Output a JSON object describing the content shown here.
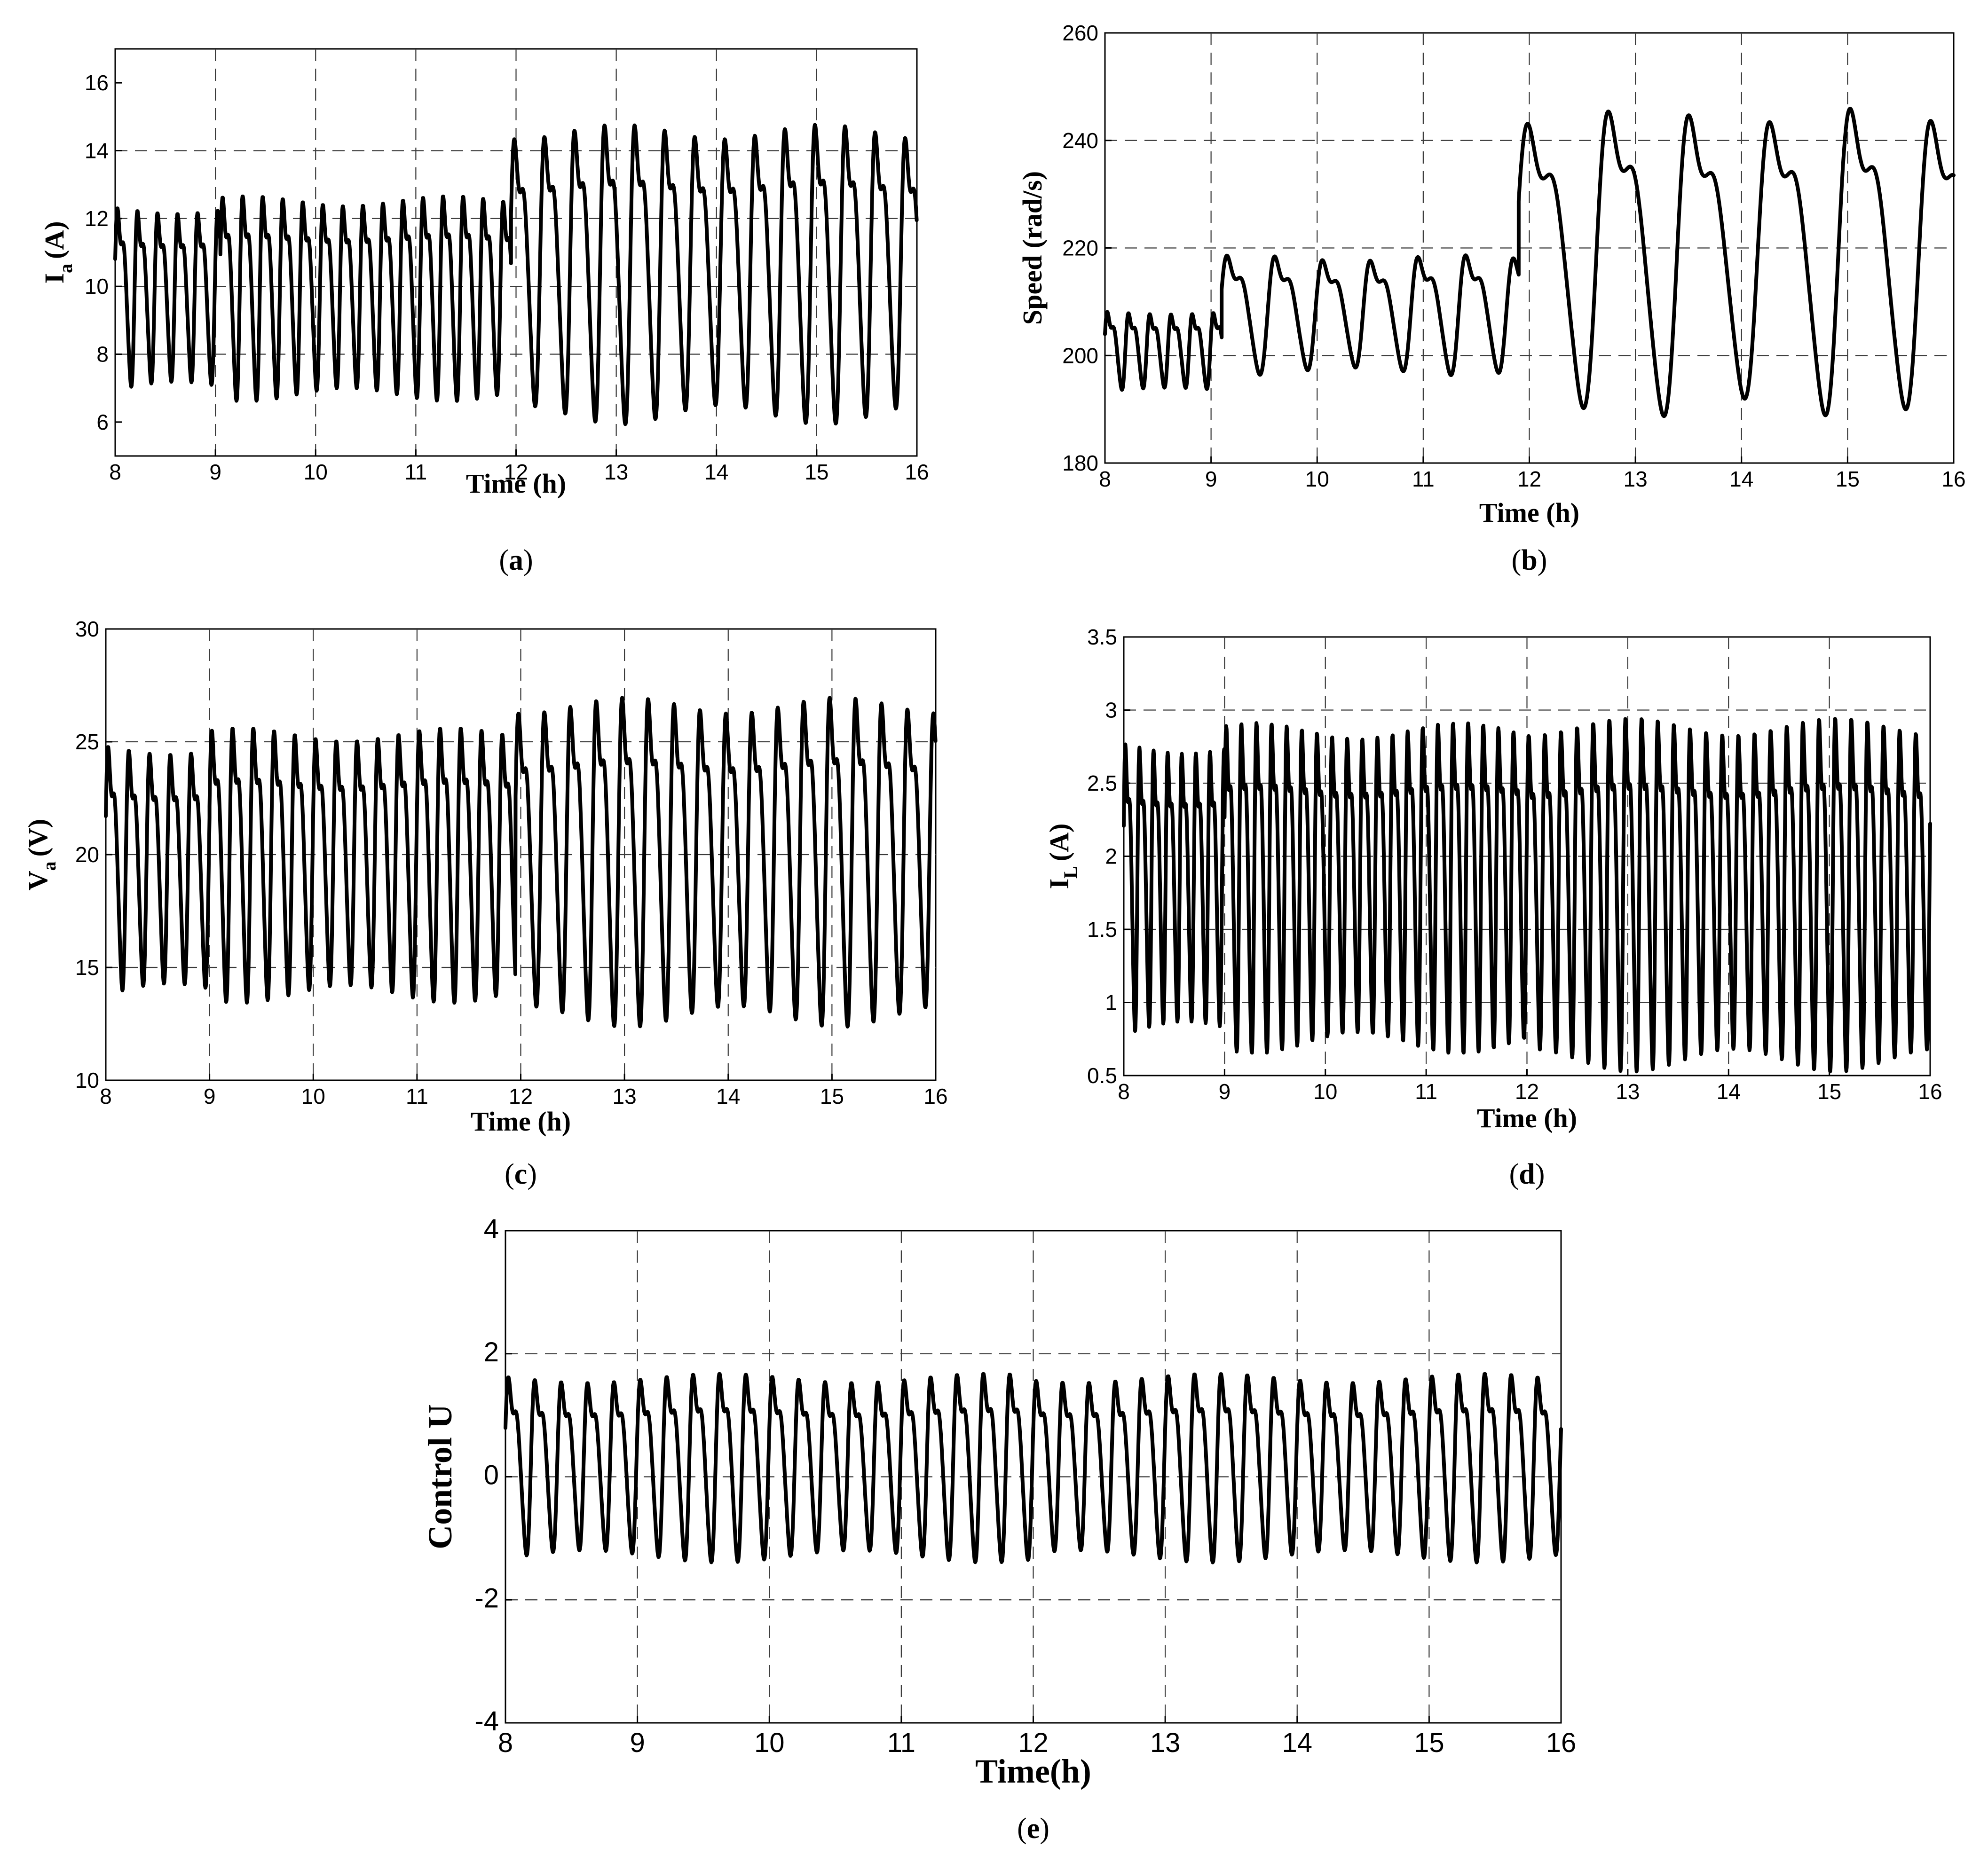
{
  "chart_data": [
    {
      "id": "a",
      "type": "line",
      "tag_open": "(",
      "tag_letter": "a",
      "tag_close": ")",
      "ylabel_main": "I",
      "ylabel_sub": "a",
      "ylabel_rest": "(A)",
      "xlabel": "Time (h)",
      "xlim": [
        8,
        16
      ],
      "ylim": [
        5,
        17
      ],
      "xticks": [
        8,
        9,
        10,
        11,
        12,
        13,
        14,
        15,
        16
      ],
      "xtick_labels": [
        "8",
        "9",
        "10",
        "11",
        "12",
        "13",
        "14",
        "15",
        "16"
      ],
      "yticks": [
        6,
        8,
        10,
        12,
        14,
        16
      ],
      "ytick_labels": [
        "6",
        "8",
        "10",
        "12",
        "14",
        "16"
      ],
      "grid": true,
      "segments": [
        {
          "x0": 8.0,
          "x1": 9.05,
          "period": 0.2,
          "min": 7.0,
          "max": 13.0
        },
        {
          "x0": 9.05,
          "x1": 11.95,
          "period": 0.2,
          "min": 6.8,
          "max": 13.3
        },
        {
          "x0": 11.95,
          "x1": 16.0,
          "period": 0.3,
          "min": 6.2,
          "max": 15.7
        }
      ]
    },
    {
      "id": "b",
      "type": "line",
      "tag_open": "(",
      "tag_letter": "b",
      "tag_close": ")",
      "ylabel_main": "Speed (rad/s)",
      "ylabel_sub": "",
      "ylabel_rest": "",
      "xlabel": "Time (h)",
      "xlim": [
        8,
        16
      ],
      "ylim": [
        180,
        260
      ],
      "xticks": [
        8,
        9,
        10,
        11,
        12,
        13,
        14,
        15,
        16
      ],
      "xtick_labels": [
        "8",
        "9",
        "10",
        "11",
        "12",
        "13",
        "14",
        "15",
        "16"
      ],
      "yticks": [
        180,
        200,
        220,
        240,
        260
      ],
      "ytick_labels": [
        "180",
        "200",
        "220",
        "240",
        "260"
      ],
      "grid": true,
      "segments": [
        {
          "x0": 8.0,
          "x1": 9.1,
          "period": 0.2,
          "min": 193.5,
          "max": 210.0
        },
        {
          "x0": 9.1,
          "x1": 11.9,
          "period": 0.45,
          "min": 197.0,
          "max": 221.0
        },
        {
          "x0": 11.9,
          "x1": 16.0,
          "period": 0.76,
          "min": 190.0,
          "max": 252.0
        }
      ]
    },
    {
      "id": "c",
      "type": "line",
      "tag_open": "(",
      "tag_letter": "c",
      "tag_close": ")",
      "ylabel_main": "V",
      "ylabel_sub": "a",
      "ylabel_rest": "(V)",
      "xlabel": "Time (h)",
      "xlim": [
        8,
        16
      ],
      "ylim": [
        10,
        30
      ],
      "xticks": [
        8,
        9,
        10,
        11,
        12,
        13,
        14,
        15,
        16
      ],
      "xtick_labels": [
        "8",
        "9",
        "10",
        "11",
        "12",
        "13",
        "14",
        "15",
        "16"
      ],
      "yticks": [
        10,
        15,
        20,
        25,
        30
      ],
      "ytick_labels": [
        "10",
        "15",
        "20",
        "25",
        "30"
      ],
      "grid": true,
      "segments": [
        {
          "x0": 8.0,
          "x1": 9.0,
          "period": 0.2,
          "min": 13.9,
          "max": 26.2
        },
        {
          "x0": 9.0,
          "x1": 11.95,
          "period": 0.2,
          "min": 13.8,
          "max": 26.9
        },
        {
          "x0": 11.95,
          "x1": 16.0,
          "period": 0.25,
          "min": 12.8,
          "max": 28.5
        }
      ]
    },
    {
      "id": "d",
      "type": "line",
      "tag_open": "(",
      "tag_letter": "d",
      "tag_close": ")",
      "ylabel_main": "I",
      "ylabel_sub": "L",
      "ylabel_rest": "(A)",
      "xlabel": "Time (h)",
      "xlim": [
        8,
        16
      ],
      "ylim": [
        0.5,
        3.5
      ],
      "xticks": [
        8,
        9,
        10,
        11,
        12,
        13,
        14,
        15,
        16
      ],
      "xtick_labels": [
        "8",
        "9",
        "10",
        "11",
        "12",
        "13",
        "14",
        "15",
        "16"
      ],
      "yticks": [
        0.5,
        1,
        1.5,
        2,
        2.5,
        3,
        3.5
      ],
      "ytick_labels": [
        "0.5",
        "1",
        "1.5",
        "2",
        "2.5",
        "3",
        "3.5"
      ],
      "grid": true,
      "segments": [
        {
          "x0": 8.0,
          "x1": 9.0,
          "period": 0.14,
          "min": 0.8,
          "max": 3.02
        },
        {
          "x0": 9.0,
          "x1": 12.0,
          "period": 0.15,
          "min": 0.72,
          "max": 3.15
        },
        {
          "x0": 12.0,
          "x1": 16.0,
          "period": 0.16,
          "min": 0.6,
          "max": 3.2
        }
      ]
    },
    {
      "id": "e",
      "type": "line",
      "tag_open": "(",
      "tag_letter": "e",
      "tag_close": ")",
      "ylabel_main": "Control U",
      "ylabel_sub": "",
      "ylabel_rest": "",
      "xlabel": "Time(h)",
      "xlim": [
        8,
        16
      ],
      "ylim": [
        -4,
        4
      ],
      "xticks": [
        8,
        9,
        10,
        11,
        12,
        13,
        14,
        15,
        16
      ],
      "xtick_labels": [
        "8",
        "9",
        "10",
        "11",
        "12",
        "13",
        "14",
        "15",
        "16"
      ],
      "yticks": [
        -4,
        -2,
        0,
        2,
        4
      ],
      "ytick_labels": [
        "-4",
        "-2",
        "0",
        "2",
        "4"
      ],
      "grid": true,
      "segments": [
        {
          "x0": 8.0,
          "x1": 12.0,
          "period": 0.2,
          "min": -1.3,
          "max": 2.0
        },
        {
          "x0": 12.0,
          "x1": 16.0,
          "period": 0.2,
          "min": -1.3,
          "max": 2.0
        }
      ]
    }
  ]
}
